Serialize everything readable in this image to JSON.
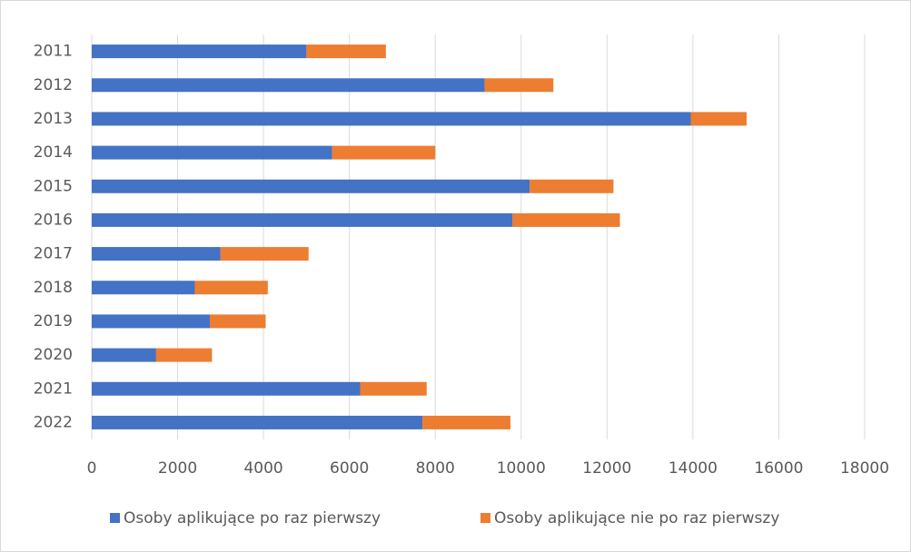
{
  "chart_data": {
    "type": "bar",
    "orientation": "horizontal",
    "stacked": true,
    "categories": [
      "2011",
      "2012",
      "2013",
      "2014",
      "2015",
      "2016",
      "2017",
      "2018",
      "2019",
      "2020",
      "2021",
      "2022"
    ],
    "series": [
      {
        "name": "Osoby aplikujące po raz pierwszy",
        "color": "#4472c4",
        "values": [
          5000,
          9150,
          13950,
          5600,
          10200,
          9800,
          3000,
          2400,
          2750,
          1500,
          6250,
          7700
        ]
      },
      {
        "name": "Osoby aplikujące nie po raz pierwszy",
        "color": "#ed7d31",
        "values": [
          1850,
          1600,
          1300,
          2400,
          1950,
          2500,
          2050,
          1700,
          1300,
          1300,
          1550,
          2050
        ]
      }
    ],
    "xlim": [
      0,
      18000
    ],
    "xticks": [
      0,
      2000,
      4000,
      6000,
      8000,
      10000,
      12000,
      14000,
      16000,
      18000
    ],
    "grid": true,
    "legend": "bottom"
  }
}
